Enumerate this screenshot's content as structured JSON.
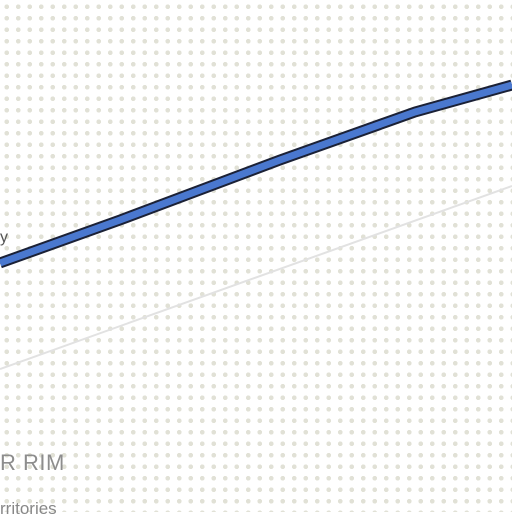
{
  "map": {
    "region_label": "R RIM",
    "region_sublabel": "rritories",
    "route_label_fragment": "y",
    "colors": {
      "background": "#ffffff",
      "dots": "#e1e1d6",
      "route_fill": "#4a78cf",
      "route_outline": "#1b2136",
      "boundary_line": "#e2e2e2",
      "label_text": "#8d8d8d"
    }
  }
}
